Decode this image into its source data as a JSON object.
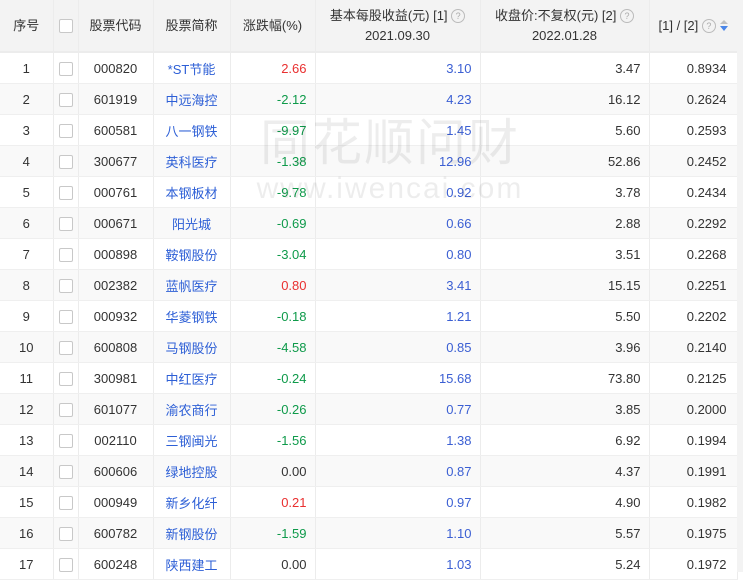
{
  "header": {
    "index": "序号",
    "code": "股票代码",
    "name": "股票简称",
    "change": "涨跌幅(%)",
    "eps": "基本每股收益(元) [1]",
    "eps_date": "2021.09.30",
    "close": "收盘价:不复权(元) [2]",
    "close_date": "2022.01.28",
    "ratio": "[1] / [2]",
    "help_glyph": "?"
  },
  "watermark": {
    "line1": "同花顺问财",
    "line2": "www.iwencai.com"
  },
  "colors": {
    "up": "#e93030",
    "down": "#0e9a4a",
    "flat": "#333333",
    "link": "#2d5fd6"
  },
  "rows": [
    {
      "index": "1",
      "code": "000820",
      "name": "*ST节能",
      "change": "2.66",
      "eps": "3.10",
      "close": "3.47",
      "ratio": "0.8934"
    },
    {
      "index": "2",
      "code": "601919",
      "name": "中远海控",
      "change": "-2.12",
      "eps": "4.23",
      "close": "16.12",
      "ratio": "0.2624"
    },
    {
      "index": "3",
      "code": "600581",
      "name": "八一钢铁",
      "change": "-9.97",
      "eps": "1.45",
      "close": "5.60",
      "ratio": "0.2593"
    },
    {
      "index": "4",
      "code": "300677",
      "name": "英科医疗",
      "change": "-1.38",
      "eps": "12.96",
      "close": "52.86",
      "ratio": "0.2452"
    },
    {
      "index": "5",
      "code": "000761",
      "name": "本钢板材",
      "change": "-9.78",
      "eps": "0.92",
      "close": "3.78",
      "ratio": "0.2434"
    },
    {
      "index": "6",
      "code": "000671",
      "name": "阳光城",
      "change": "-0.69",
      "eps": "0.66",
      "close": "2.88",
      "ratio": "0.2292"
    },
    {
      "index": "7",
      "code": "000898",
      "name": "鞍钢股份",
      "change": "-3.04",
      "eps": "0.80",
      "close": "3.51",
      "ratio": "0.2268"
    },
    {
      "index": "8",
      "code": "002382",
      "name": "蓝帆医疗",
      "change": "0.80",
      "eps": "3.41",
      "close": "15.15",
      "ratio": "0.2251"
    },
    {
      "index": "9",
      "code": "000932",
      "name": "华菱钢铁",
      "change": "-0.18",
      "eps": "1.21",
      "close": "5.50",
      "ratio": "0.2202"
    },
    {
      "index": "10",
      "code": "600808",
      "name": "马钢股份",
      "change": "-4.58",
      "eps": "0.85",
      "close": "3.96",
      "ratio": "0.2140"
    },
    {
      "index": "11",
      "code": "300981",
      "name": "中红医疗",
      "change": "-0.24",
      "eps": "15.68",
      "close": "73.80",
      "ratio": "0.2125"
    },
    {
      "index": "12",
      "code": "601077",
      "name": "渝农商行",
      "change": "-0.26",
      "eps": "0.77",
      "close": "3.85",
      "ratio": "0.2000"
    },
    {
      "index": "13",
      "code": "002110",
      "name": "三钢闽光",
      "change": "-1.56",
      "eps": "1.38",
      "close": "6.92",
      "ratio": "0.1994"
    },
    {
      "index": "14",
      "code": "600606",
      "name": "绿地控股",
      "change": "0.00",
      "eps": "0.87",
      "close": "4.37",
      "ratio": "0.1991"
    },
    {
      "index": "15",
      "code": "000949",
      "name": "新乡化纤",
      "change": "0.21",
      "eps": "0.97",
      "close": "4.90",
      "ratio": "0.1982"
    },
    {
      "index": "16",
      "code": "600782",
      "name": "新钢股份",
      "change": "-1.59",
      "eps": "1.10",
      "close": "5.57",
      "ratio": "0.1975"
    },
    {
      "index": "17",
      "code": "600248",
      "name": "陕西建工",
      "change": "0.00",
      "eps": "1.03",
      "close": "5.24",
      "ratio": "0.1972"
    }
  ]
}
